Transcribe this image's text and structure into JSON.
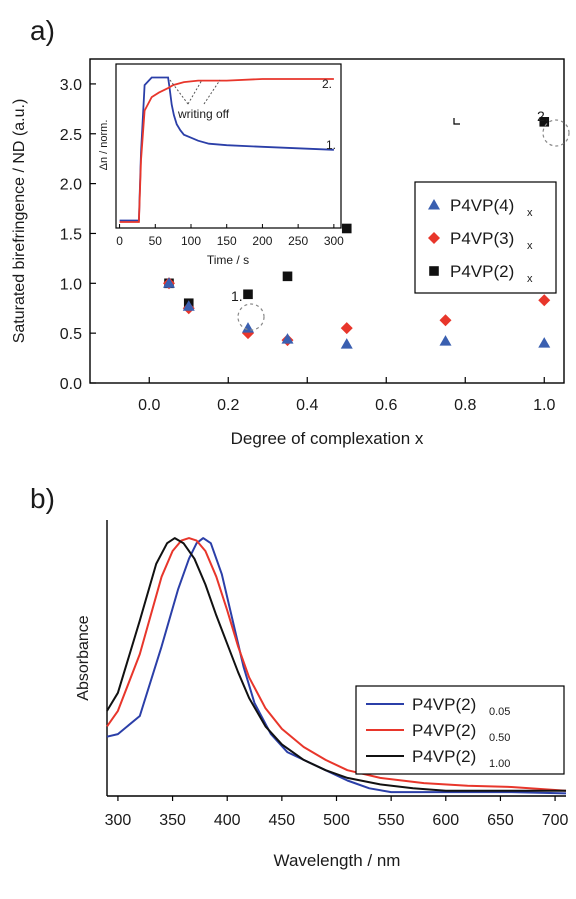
{
  "panels": {
    "a": {
      "label": "a)",
      "ylabel": "Saturated birefringence / ND (a.u.)",
      "xlabel": "Degree of complexation x",
      "annotation_1": "1.",
      "annotation_2": "2.",
      "inset": {
        "ylabel": "Δn / norm.",
        "xlabel": "Time / s",
        "annotation": "writing off",
        "label_1": "1.",
        "label_2": "2."
      }
    },
    "b": {
      "label": "b)",
      "ylabel": "Absorbance",
      "xlabel": "Wavelength / nm"
    }
  },
  "chart_data": [
    {
      "type": "scatter",
      "panel": "a",
      "xlim": [
        -0.15,
        1.05
      ],
      "ylim": [
        0,
        3.25
      ],
      "x_ticks": [
        0.0,
        0.2,
        0.4,
        0.6,
        0.8,
        1.0
      ],
      "x_tick_labels": [
        "0.0",
        "0.2",
        "0.4",
        "0.6",
        "0.8",
        "1.0"
      ],
      "y_ticks": [
        0.0,
        0.5,
        1.0,
        1.5,
        2.0,
        2.5,
        3.0
      ],
      "y_tick_labels": [
        "0.0",
        "0.5",
        "1.0",
        "1.5",
        "2.0",
        "2.5",
        "3.0"
      ],
      "legend_position": "right",
      "series": [
        {
          "name": "P4VP(4)",
          "subscript": "x",
          "marker": "triangle",
          "color": "#3a5fb0",
          "x": [
            0.05,
            0.1,
            0.25,
            0.35,
            0.5,
            0.75,
            1.0
          ],
          "y": [
            1.0,
            0.77,
            0.55,
            0.44,
            0.39,
            0.42,
            0.4
          ]
        },
        {
          "name": "P4VP(3)",
          "subscript": "x",
          "marker": "diamond",
          "color": "#e8362b",
          "x": [
            0.05,
            0.1,
            0.25,
            0.35,
            0.5,
            0.75,
            1.0
          ],
          "y": [
            1.0,
            0.75,
            0.5,
            0.43,
            0.55,
            0.63,
            0.83
          ]
        },
        {
          "name": "P4VP(2)",
          "subscript": "x",
          "marker": "square",
          "color": "#111111",
          "x": [
            0.05,
            0.1,
            0.25,
            0.35,
            0.5,
            1.0
          ],
          "y": [
            1.0,
            0.8,
            0.89,
            1.07,
            1.55,
            2.62
          ]
        }
      ]
    },
    {
      "type": "line",
      "panel": "a-inset",
      "xlim": [
        -5,
        310
      ],
      "ylim": [
        0,
        1.09
      ],
      "x_ticks": [
        0,
        50,
        100,
        150,
        200,
        250,
        300
      ],
      "x_tick_labels": [
        "0",
        "50",
        "100",
        "150",
        "200",
        "250",
        "300"
      ],
      "series": [
        {
          "name": "1.",
          "color": "#2b3fa8",
          "x": [
            0,
            27,
            30,
            35,
            45,
            60,
            68,
            70,
            73,
            76,
            80,
            85,
            90,
            100,
            110,
            125,
            150,
            200,
            250,
            300
          ],
          "y": [
            0.05,
            0.05,
            0.5,
            0.95,
            1.0,
            1.0,
            1.0,
            0.93,
            0.82,
            0.75,
            0.69,
            0.65,
            0.62,
            0.6,
            0.58,
            0.56,
            0.55,
            0.54,
            0.53,
            0.52
          ]
        },
        {
          "name": "2.",
          "color": "#e8362b",
          "x": [
            0,
            27,
            30,
            35,
            45,
            55,
            68,
            75,
            90,
            110,
            130,
            150,
            200,
            250,
            300
          ],
          "y": [
            0.04,
            0.04,
            0.45,
            0.78,
            0.87,
            0.9,
            0.93,
            0.95,
            0.97,
            0.98,
            0.98,
            0.98,
            0.99,
            0.99,
            0.99
          ]
        }
      ]
    },
    {
      "type": "line",
      "panel": "b",
      "xlim": [
        290,
        710
      ],
      "ylim": [
        0,
        1.07
      ],
      "x_ticks": [
        300,
        350,
        400,
        450,
        500,
        550,
        600,
        650,
        700
      ],
      "x_tick_labels": [
        "300",
        "350",
        "400",
        "450",
        "500",
        "550",
        "600",
        "650",
        "700"
      ],
      "legend_position": "right",
      "series": [
        {
          "name": "P4VP(2)",
          "subscript": "0.05",
          "color": "#2b3fa8",
          "x": [
            290,
            300,
            320,
            340,
            355,
            365,
            372,
            378,
            385,
            395,
            405,
            415,
            425,
            440,
            455,
            470,
            490,
            510,
            530,
            550,
            580,
            620,
            660,
            710
          ],
          "y": [
            0.23,
            0.24,
            0.31,
            0.58,
            0.8,
            0.92,
            0.98,
            1.0,
            0.98,
            0.86,
            0.68,
            0.5,
            0.36,
            0.24,
            0.17,
            0.14,
            0.1,
            0.06,
            0.03,
            0.015,
            0.015,
            0.015,
            0.015,
            0.01
          ]
        },
        {
          "name": "P4VP(2)",
          "subscript": "0.50",
          "color": "#e8362b",
          "x": [
            290,
            300,
            320,
            340,
            350,
            358,
            365,
            372,
            380,
            390,
            400,
            410,
            420,
            435,
            450,
            470,
            490,
            510,
            540,
            580,
            620,
            660,
            710
          ],
          "y": [
            0.27,
            0.33,
            0.55,
            0.85,
            0.95,
            0.99,
            1.0,
            0.99,
            0.95,
            0.85,
            0.72,
            0.58,
            0.46,
            0.34,
            0.26,
            0.19,
            0.14,
            0.1,
            0.07,
            0.05,
            0.04,
            0.035,
            0.02
          ]
        },
        {
          "name": "P4VP(2)",
          "subscript": "1.00",
          "color": "#111111",
          "x": [
            290,
            300,
            320,
            335,
            345,
            352,
            360,
            370,
            380,
            390,
            400,
            410,
            420,
            435,
            450,
            470,
            490,
            510,
            540,
            570,
            600,
            650,
            710
          ],
          "y": [
            0.33,
            0.4,
            0.68,
            0.9,
            0.98,
            1.0,
            0.98,
            0.92,
            0.82,
            0.7,
            0.59,
            0.48,
            0.38,
            0.27,
            0.2,
            0.14,
            0.1,
            0.07,
            0.045,
            0.03,
            0.02,
            0.02,
            0.02
          ]
        }
      ]
    }
  ]
}
